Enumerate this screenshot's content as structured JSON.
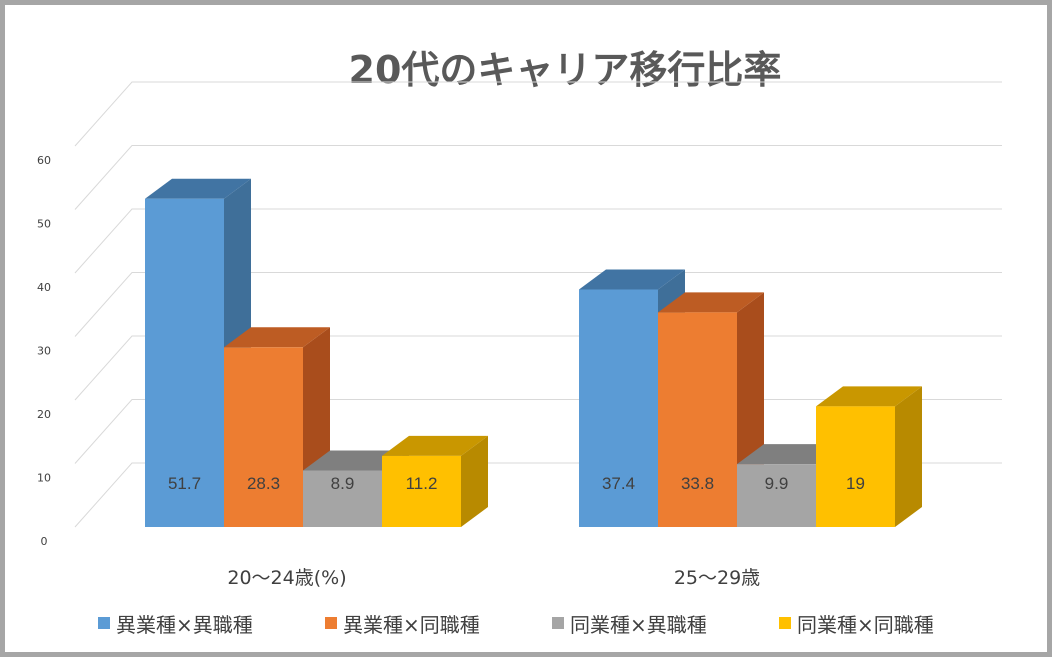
{
  "chart_data": {
    "type": "bar",
    "title": "20代のキャリア移行比率",
    "categories": [
      "20〜24歳(%)",
      "25〜29歳"
    ],
    "series": [
      {
        "name": "異業種×異職種",
        "values": [
          51.7,
          37.4
        ],
        "color": "#5b9bd5",
        "side_color": "#3f6f99",
        "top_color": "#4174a3"
      },
      {
        "name": "異業種×同職種",
        "values": [
          28.3,
          33.8
        ],
        "color": "#ed7d31",
        "side_color": "#a94d1c",
        "top_color": "#bd5c23"
      },
      {
        "name": "同業種×異職種",
        "values": [
          8.9,
          9.9
        ],
        "color": "#a5a5a5",
        "side_color": "#767676",
        "top_color": "#7f7f7f"
      },
      {
        "name": "同業種×同職種",
        "values": [
          11.2,
          19
        ],
        "color": "#ffc000",
        "side_color": "#b88a00",
        "top_color": "#c99700"
      }
    ],
    "data_labels": [
      [
        "51.7",
        "37.4"
      ],
      [
        "28.3",
        "33.8"
      ],
      [
        "8.9",
        "9.9"
      ],
      [
        "11.2",
        "19"
      ]
    ],
    "ylim": [
      0,
      60
    ],
    "yticks": [
      "0",
      "10",
      "20",
      "30",
      "40",
      "50",
      "60"
    ],
    "grid": true,
    "legend": "bottom",
    "xlabel": "",
    "ylabel": ""
  }
}
